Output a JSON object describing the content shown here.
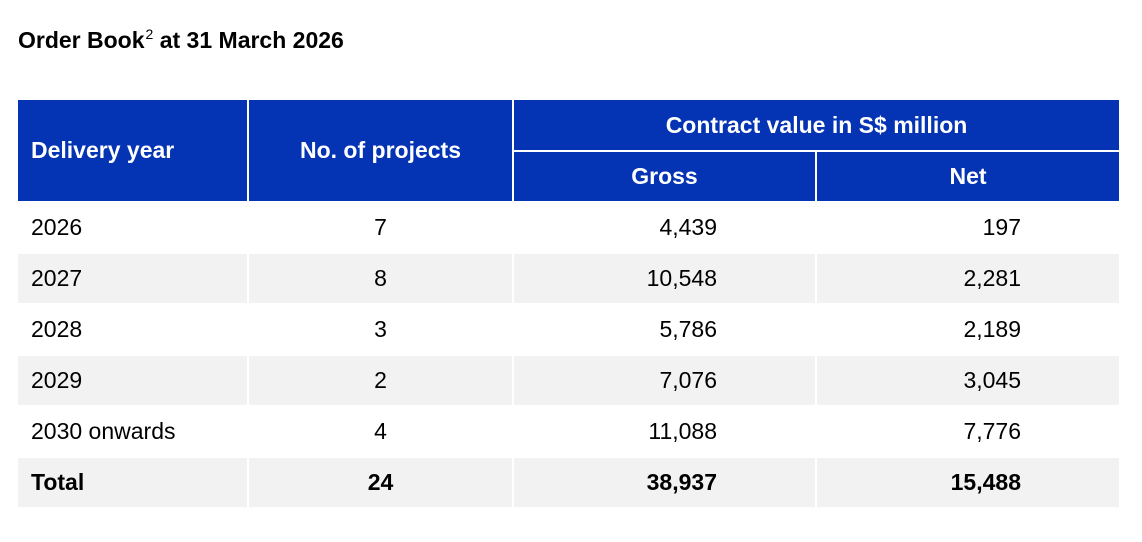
{
  "title": {
    "text": "Order Book",
    "superscript": "2",
    "rest": "at 31 March 2026"
  },
  "table": {
    "header": {
      "delivery_year": "Delivery year",
      "projects": "No. of projects",
      "contract_value": "Contract value in S$ million",
      "gross": "Gross",
      "net": "Net"
    },
    "rows": [
      [
        "2026",
        "7",
        "4,439",
        "197"
      ],
      [
        "2027",
        "8",
        "10,548",
        "2,281"
      ],
      [
        "2028",
        "3",
        "5,786",
        "2,189"
      ],
      [
        "2029",
        "2",
        "7,076",
        "3,045"
      ],
      [
        "2030 onwards",
        "4",
        "11,088",
        "7,776"
      ],
      [
        "Total",
        "24",
        "38,937",
        "15,488"
      ]
    ]
  }
}
